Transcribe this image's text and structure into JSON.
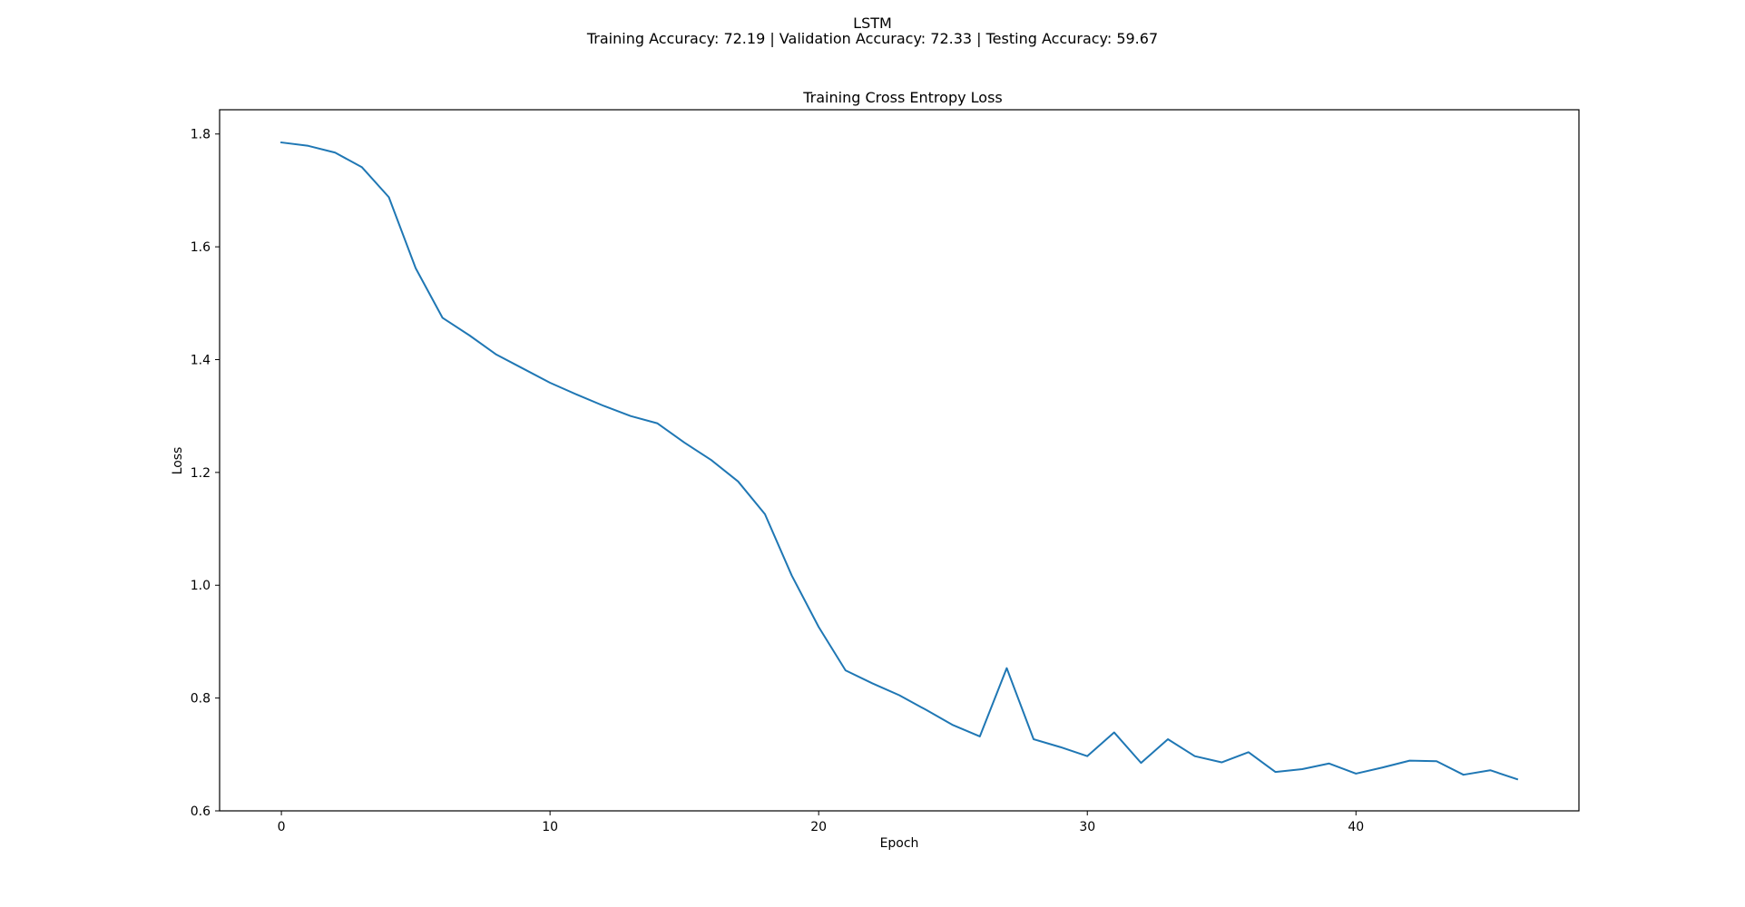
{
  "figure": {
    "title": "LSTM",
    "subtitle": "Training Accuracy: 72.19 | Validation Accuracy: 72.33 | Testing Accuracy: 59.67"
  },
  "chart_data": {
    "type": "line",
    "title": "Training Cross Entropy Loss",
    "xlabel": "Epoch",
    "ylabel": "Loss",
    "xlim": [
      -2.3,
      48.3
    ],
    "ylim": [
      0.6,
      1.843
    ],
    "xticks": [
      0,
      10,
      20,
      30,
      40
    ],
    "yticks": [
      0.6,
      0.8,
      1.0,
      1.2,
      1.4,
      1.6,
      1.8
    ],
    "ytick_labels": [
      "0.6",
      "0.8",
      "1.0",
      "1.2",
      "1.4",
      "1.6",
      "1.8"
    ],
    "grid": false,
    "color": "#1f77b4",
    "series": [
      {
        "x": [
          0,
          1,
          2,
          3,
          4,
          5,
          6,
          7,
          8,
          9,
          10,
          11,
          12,
          13,
          14,
          15,
          16,
          17,
          18,
          19,
          20,
          21,
          22,
          23,
          24,
          25,
          26,
          27,
          28,
          29,
          30,
          31,
          32,
          33,
          34,
          35,
          36,
          37,
          38,
          39,
          40,
          41,
          42,
          43,
          44,
          45,
          46
        ],
        "values": [
          1.785,
          1.779,
          1.767,
          1.741,
          1.688,
          1.562,
          1.474,
          1.443,
          1.409,
          1.384,
          1.359,
          1.338,
          1.318,
          1.3,
          1.287,
          1.253,
          1.222,
          1.184,
          1.126,
          1.017,
          0.926,
          0.849,
          0.826,
          0.805,
          0.779,
          0.752,
          0.732,
          0.853,
          0.727,
          0.713,
          0.697,
          0.739,
          0.685,
          0.727,
          0.697,
          0.686,
          0.704,
          0.669,
          0.674,
          0.684,
          0.666,
          0.677,
          0.689,
          0.688,
          0.664,
          0.672,
          0.656
        ]
      }
    ]
  }
}
